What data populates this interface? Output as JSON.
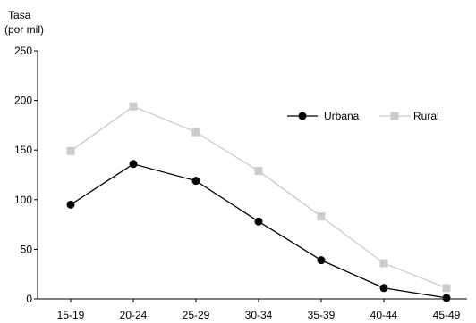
{
  "chart_data": {
    "type": "line",
    "title": "",
    "ylabel": [
      "Tasa",
      "(por mil)"
    ],
    "xlabel": "",
    "categories": [
      "15-19",
      "20-24",
      "25-29",
      "30-34",
      "35-39",
      "40-44",
      "45-49"
    ],
    "ylim": [
      0,
      250
    ],
    "yticks": [
      0,
      50,
      100,
      150,
      200,
      250
    ],
    "grid": false,
    "legend_position": "top-right",
    "series": [
      {
        "name": "Urbana",
        "values": [
          95,
          136,
          119,
          78,
          39,
          11,
          1
        ],
        "color": "#000000",
        "marker": "circle"
      },
      {
        "name": "Rural",
        "values": [
          149,
          194,
          168,
          129,
          83,
          36,
          11
        ],
        "color": "#cccccc",
        "marker": "square"
      }
    ]
  }
}
